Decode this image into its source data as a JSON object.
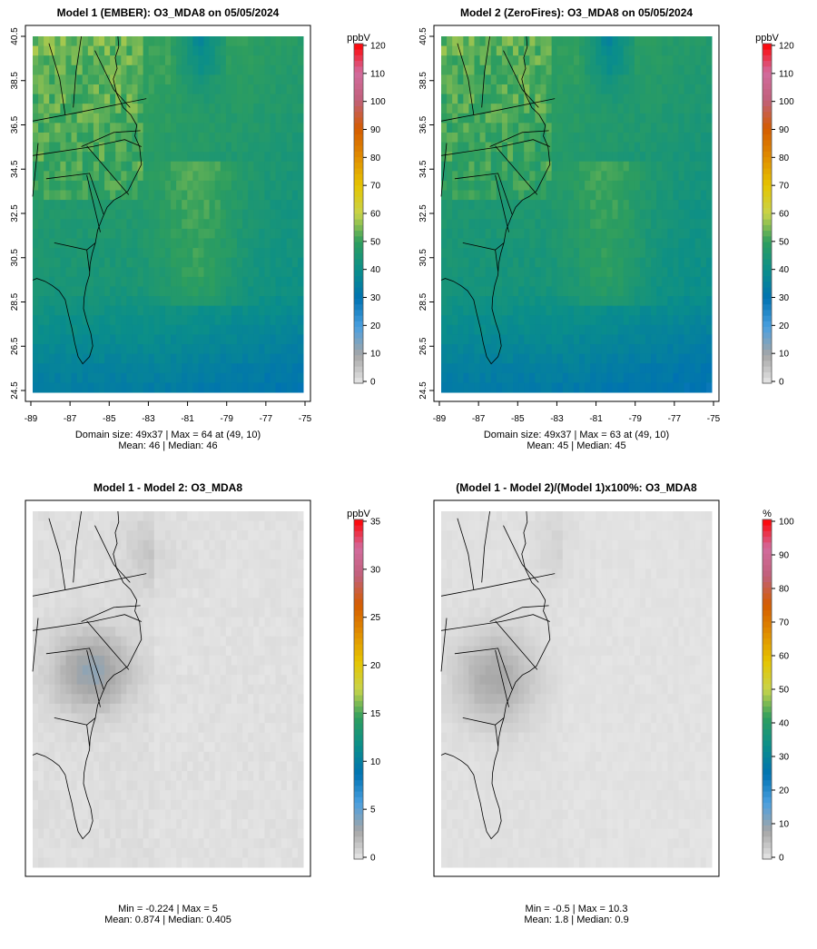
{
  "chart_data": [
    {
      "type": "heatmap",
      "title": "Model 1 (EMBER): O3_MDA8 on 05/05/2024",
      "colorbar_label": "ppbV",
      "colorbar_ticks": [
        0,
        10,
        20,
        30,
        40,
        50,
        60,
        70,
        80,
        90,
        100,
        110,
        120
      ],
      "colorbar_range": [
        0,
        120
      ],
      "colormap": "sequential",
      "x_ticks": [
        "-89",
        "-87",
        "-85",
        "-83",
        "-81",
        "-79",
        "-77",
        "-75"
      ],
      "y_ticks": [
        "24.5",
        "26.5",
        "28.5",
        "30.5",
        "32.5",
        "34.5",
        "36.5",
        "38.5",
        "40.5"
      ],
      "grid_cols": 49,
      "grid_rows": 37,
      "field": "ozone",
      "base_value": 46,
      "footer_lines": [
        "Domain size: 49x37 | Max = 64 at (49, 10)",
        "Mean: 46 |  Median: 46"
      ],
      "stats": {
        "max": 64,
        "mean": 46,
        "median": 46
      }
    },
    {
      "type": "heatmap",
      "title": "Model 2 (ZeroFires): O3_MDA8 on 05/05/2024",
      "colorbar_label": "ppbV",
      "colorbar_ticks": [
        0,
        10,
        20,
        30,
        40,
        50,
        60,
        70,
        80,
        90,
        100,
        110,
        120
      ],
      "colorbar_range": [
        0,
        120
      ],
      "colormap": "sequential",
      "x_ticks": [
        "-89",
        "-87",
        "-85",
        "-83",
        "-81",
        "-79",
        "-77",
        "-75"
      ],
      "y_ticks": [
        "24.5",
        "26.5",
        "28.5",
        "30.5",
        "32.5",
        "34.5",
        "36.5",
        "38.5",
        "40.5"
      ],
      "grid_cols": 49,
      "grid_rows": 37,
      "field": "ozone",
      "base_value": 45,
      "footer_lines": [
        "Domain size: 49x37 | Max = 63 at (49, 10)",
        "Mean: 45 |  Median: 45"
      ],
      "stats": {
        "max": 63,
        "mean": 45,
        "median": 45
      }
    },
    {
      "type": "heatmap",
      "title": "Model 1 - Model 2: O3_MDA8",
      "colorbar_label": "ppbV",
      "colorbar_ticks": [
        0,
        5,
        10,
        15,
        20,
        25,
        30,
        35
      ],
      "colorbar_range": [
        0,
        35
      ],
      "colormap": "sequential",
      "x_ticks": [],
      "y_ticks": [],
      "grid_cols": 49,
      "grid_rows": 37,
      "field": "diff",
      "base_value": 0.874,
      "footer_lines": [
        "Min = -0.224 | Max = 5",
        "Mean: 0.874 |  Median: 0.405"
      ],
      "stats": {
        "min": -0.224,
        "max": 5,
        "mean": 0.874,
        "median": 0.405
      }
    },
    {
      "type": "heatmap",
      "title": "(Model 1 - Model 2)/(Model 1)x100%: O3_MDA8",
      "colorbar_label": "%",
      "colorbar_ticks": [
        0,
        10,
        20,
        30,
        40,
        50,
        60,
        70,
        80,
        90,
        100
      ],
      "colorbar_range": [
        0,
        100
      ],
      "colormap": "sequential",
      "x_ticks": [],
      "y_ticks": [],
      "grid_cols": 49,
      "grid_rows": 37,
      "field": "pct",
      "base_value": 1.8,
      "footer_lines": [
        "Min = -0.5 | Max = 10.3",
        "Mean: 1.8 |  Median: 0.9"
      ],
      "stats": {
        "min": -0.5,
        "max": 10.3,
        "mean": 1.8,
        "median": 0.9
      }
    }
  ],
  "colors": {
    "land_line": "#000000",
    "frame": "#000000",
    "nodata": "#e6e6e6",
    "ramp": [
      "#e6e6e6",
      "#a6a6a6",
      "#4a9fe0",
      "#0072b2",
      "#0a8e8a",
      "#2e9e5e",
      "#c8d44a",
      "#e6c400",
      "#e08c00",
      "#d45b00",
      "#c0607a",
      "#d36b9e",
      "#ff0000"
    ]
  }
}
